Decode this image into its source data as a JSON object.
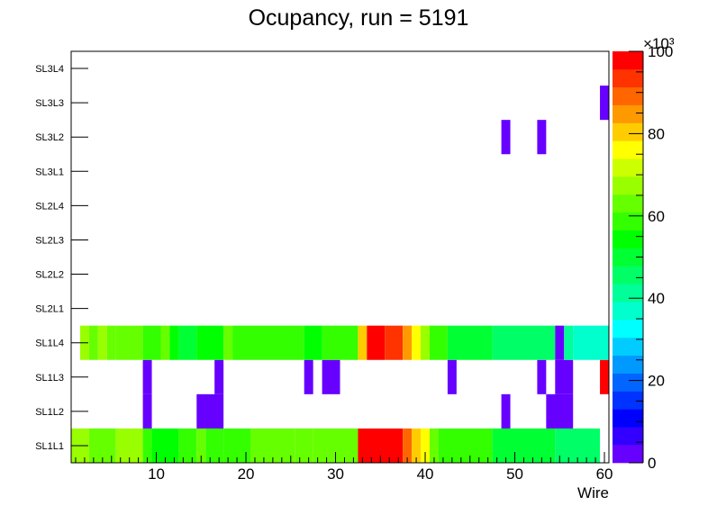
{
  "chart_data": {
    "type": "heatmap",
    "title": "Ocupancy, run = 5191",
    "xlabel": "Wire",
    "ylabel": "",
    "xlim": [
      0.5,
      60.5
    ],
    "x_ticks": [
      10,
      20,
      30,
      40,
      50,
      60
    ],
    "x_tick_labels": [
      "10",
      "20",
      "30",
      "40",
      "50",
      "60"
    ],
    "categories_y": [
      "SL1L1",
      "SL1L2",
      "SL1L3",
      "SL1L4",
      "SL2L1",
      "SL2L2",
      "SL2L3",
      "SL2L4",
      "SL3L1",
      "SL3L2",
      "SL3L3",
      "SL3L4"
    ],
    "zlim": [
      0,
      100000
    ],
    "z_ticks": [
      0,
      20,
      40,
      60,
      80,
      100
    ],
    "z_tick_labels": [
      "0",
      "20",
      "40",
      "60",
      "80",
      "100"
    ],
    "z_exponent_label": "×10³",
    "palette": [
      "#6600ff",
      "#3300ff",
      "#0000ff",
      "#0033ff",
      "#0066ff",
      "#0099ff",
      "#00ccff",
      "#00ffff",
      "#00ffcc",
      "#00ff99",
      "#00ff66",
      "#00ff33",
      "#00ff00",
      "#33ff00",
      "#66ff00",
      "#99ff00",
      "#ccff00",
      "#ffff00",
      "#ffcc00",
      "#ff9900",
      "#ff6600",
      "#ff3300",
      "#ff0000"
    ],
    "grid": false,
    "legend": "none",
    "rows": [
      {
        "layer": "SL1L1",
        "segments": [
          [
            1,
            2,
            66
          ],
          [
            3,
            5,
            64
          ],
          [
            6,
            8,
            68
          ],
          [
            9,
            9,
            60
          ],
          [
            10,
            12,
            56
          ],
          [
            13,
            14,
            60
          ],
          [
            15,
            15,
            62
          ],
          [
            16,
            17,
            58
          ],
          [
            18,
            20,
            60
          ],
          [
            21,
            25,
            64
          ],
          [
            26,
            27,
            62
          ],
          [
            28,
            32,
            65
          ],
          [
            33,
            37,
            98
          ],
          [
            38,
            38,
            88
          ],
          [
            39,
            39,
            80
          ],
          [
            40,
            40,
            74
          ],
          [
            41,
            41,
            62
          ],
          [
            42,
            47,
            58
          ],
          [
            48,
            54,
            52
          ],
          [
            55,
            59,
            44
          ]
        ]
      },
      {
        "layer": "SL1L2",
        "segments": [
          [
            9,
            9,
            2
          ],
          [
            15,
            17,
            2
          ],
          [
            49,
            49,
            2
          ],
          [
            54,
            56,
            2
          ]
        ]
      },
      {
        "layer": "SL1L3",
        "segments": [
          [
            9,
            9,
            2
          ],
          [
            17,
            17,
            2
          ],
          [
            27,
            27,
            2
          ],
          [
            29,
            30,
            2
          ],
          [
            43,
            43,
            2
          ],
          [
            53,
            53,
            2
          ],
          [
            55,
            56,
            2
          ],
          [
            60,
            60,
            100
          ]
        ]
      },
      {
        "layer": "SL1L4",
        "segments": [
          [
            2,
            2,
            66
          ],
          [
            3,
            3,
            62
          ],
          [
            4,
            4,
            66
          ],
          [
            5,
            5,
            62
          ],
          [
            6,
            8,
            64
          ],
          [
            9,
            10,
            58
          ],
          [
            11,
            11,
            62
          ],
          [
            12,
            12,
            56
          ],
          [
            13,
            14,
            48
          ],
          [
            15,
            17,
            56
          ],
          [
            18,
            18,
            62
          ],
          [
            19,
            20,
            58
          ],
          [
            21,
            26,
            60
          ],
          [
            27,
            28,
            56
          ],
          [
            29,
            32,
            60
          ],
          [
            33,
            33,
            80
          ],
          [
            34,
            35,
            98
          ],
          [
            36,
            37,
            95
          ],
          [
            38,
            38,
            86
          ],
          [
            39,
            39,
            78
          ],
          [
            40,
            40,
            66
          ],
          [
            41,
            42,
            58
          ],
          [
            43,
            47,
            50
          ],
          [
            48,
            54,
            45
          ],
          [
            55,
            55,
            2
          ],
          [
            56,
            56,
            42
          ],
          [
            57,
            60,
            35
          ]
        ]
      },
      {
        "layer": "SL2L1",
        "segments": []
      },
      {
        "layer": "SL2L2",
        "segments": []
      },
      {
        "layer": "SL2L3",
        "segments": []
      },
      {
        "layer": "SL2L4",
        "segments": []
      },
      {
        "layer": "SL3L1",
        "segments": []
      },
      {
        "layer": "SL3L2",
        "segments": [
          [
            49,
            49,
            2
          ],
          [
            53,
            53,
            2
          ]
        ]
      },
      {
        "layer": "SL3L3",
        "segments": [
          [
            60,
            60,
            2
          ]
        ]
      },
      {
        "layer": "SL3L4",
        "segments": []
      }
    ]
  }
}
